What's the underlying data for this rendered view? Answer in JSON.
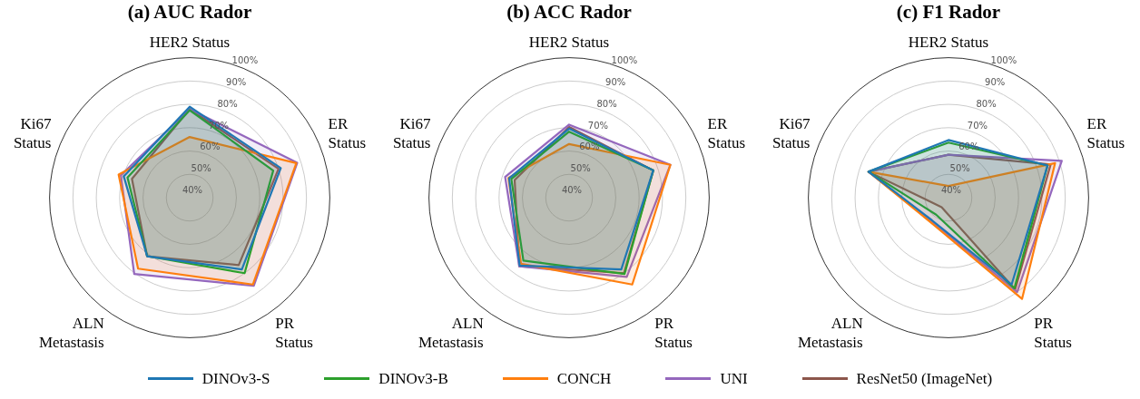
{
  "chart_data": [
    {
      "type": "radar",
      "title": "(a) AUC Rador",
      "categories": [
        "HER2 Status",
        "ER Status",
        "PR Status",
        "ALN Metastasis",
        "Ki67 Status"
      ],
      "ylim": [
        40,
        100
      ],
      "yticks": [
        {
          "value": 40,
          "label": "40%"
        },
        {
          "value": 50,
          "label": "50%"
        },
        {
          "value": 60,
          "label": "60%"
        },
        {
          "value": 70,
          "label": "70%"
        },
        {
          "value": 80,
          "label": "80%"
        },
        {
          "value": 90,
          "label": "90%"
        },
        {
          "value": 100,
          "label": "100%"
        }
      ],
      "legend": "bottom",
      "series": [
        {
          "name": "DINOv3-S",
          "color": "#1f77b4",
          "values": [
            79,
            81,
            78,
            71,
            69.7
          ]
        },
        {
          "name": "DINOv3-B",
          "color": "#2ca02c",
          "values": [
            77.5,
            77.6,
            80,
            71,
            68
          ]
        },
        {
          "name": "CONCH",
          "color": "#ff7f0e",
          "values": [
            66,
            88,
            86,
            77.6,
            72
          ]
        },
        {
          "name": "UNI",
          "color": "#9467bd",
          "values": [
            78,
            88.4,
            86.7,
            80.4,
            71
          ]
        },
        {
          "name": "ResNet50 (ImageNet)",
          "color": "#8c564b",
          "values": [
            78,
            80,
            75.7,
            71,
            66
          ]
        }
      ]
    },
    {
      "type": "radar",
      "title": "(b) ACC Rador",
      "categories": [
        "HER2 Status",
        "ER Status",
        "PR Status",
        "ALN Metastasis",
        "Ki67 Status"
      ],
      "ylim": [
        40,
        100
      ],
      "yticks": [
        {
          "value": 40,
          "label": "40%"
        },
        {
          "value": 50,
          "label": "50%"
        },
        {
          "value": 60,
          "label": "60%"
        },
        {
          "value": 70,
          "label": "70%"
        },
        {
          "value": 80,
          "label": "80%"
        },
        {
          "value": 90,
          "label": "90%"
        },
        {
          "value": 100,
          "label": "100%"
        }
      ],
      "series": [
        {
          "color": "#1f77b4",
          "values": [
            69.6,
            77.9,
            78,
            76,
            67
          ]
        },
        {
          "color": "#2ca02c",
          "values": [
            68.3,
            77.9,
            80.4,
            73.3,
            66
          ]
        },
        {
          "color": "#ff7f0e",
          "values": [
            63,
            85.6,
            86,
            75,
            67.3
          ]
        },
        {
          "color": "#9467bd",
          "values": [
            71.3,
            85.6,
            82,
            76.3,
            68.8
          ]
        },
        {
          "color": "#8c564b",
          "values": [
            70.3,
            77.9,
            80,
            76.3,
            64.5
          ]
        }
      ]
    },
    {
      "type": "radar",
      "title": "(c) F1 Rador",
      "categories": [
        "HER2 Status",
        "ER Status",
        "PR Status",
        "ALN Metastasis",
        "Ki67 Status"
      ],
      "ylim": [
        40,
        100
      ],
      "yticks": [
        {
          "value": 40,
          "label": "40%"
        },
        {
          "value": 50,
          "label": "50%"
        },
        {
          "value": 60,
          "label": "60%"
        },
        {
          "value": 70,
          "label": "70%"
        },
        {
          "value": 80,
          "label": "80%"
        },
        {
          "value": 90,
          "label": "90%"
        },
        {
          "value": 100,
          "label": "100%"
        }
      ],
      "series": [
        {
          "color": "#1f77b4",
          "values": [
            64.7,
            84.6,
            86,
            52,
            76
          ]
        },
        {
          "color": "#2ca02c",
          "values": [
            63.6,
            84.6,
            88,
            49,
            76
          ]
        },
        {
          "color": "#ff7f0e",
          "values": [
            45,
            88,
            93.6,
            53,
            76
          ]
        },
        {
          "color": "#9467bd",
          "values": [
            58.4,
            91,
            90,
            52.4,
            76
          ]
        },
        {
          "color": "#8c564b",
          "values": [
            58.4,
            86,
            88.6,
            45,
            76
          ]
        }
      ]
    }
  ]
}
